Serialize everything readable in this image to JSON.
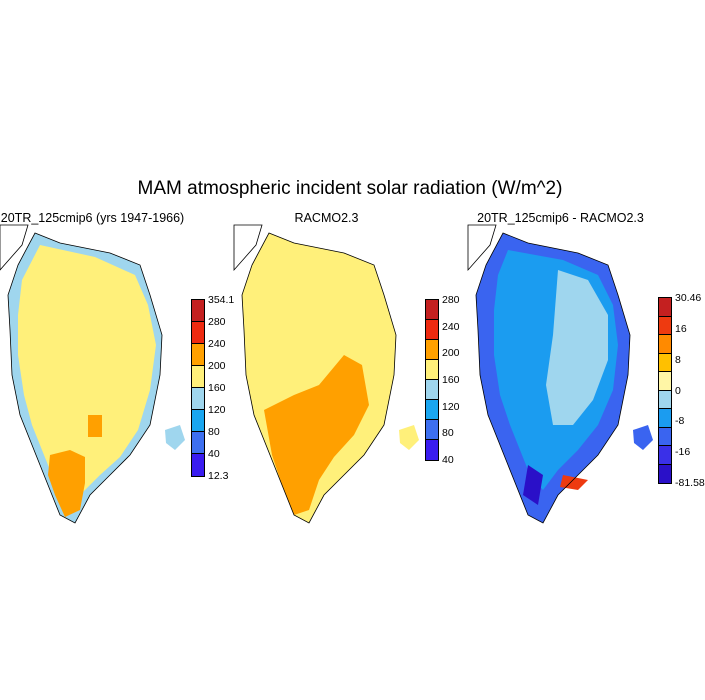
{
  "title": "MAM atmospheric incident solar radiation (W/m^2)",
  "panels": [
    {
      "id": "model",
      "title": "20TR_125cmip6 (yrs 1947-1966)",
      "colorbar": {
        "colors": [
          "#3a1cf0",
          "#3d6ff0",
          "#1aa6f0",
          "#9fd6ee",
          "#fff07a",
          "#ffa000",
          "#ee2a10",
          "#c42020"
        ],
        "labels": [
          "354.1",
          "280",
          "240",
          "200",
          "160",
          "120",
          "80",
          "40",
          "12.3"
        ]
      }
    },
    {
      "id": "racmo",
      "title": "RACMO2.3",
      "colorbar": {
        "colors": [
          "#3a1cf0",
          "#3d6ff0",
          "#1aa6f0",
          "#9fd6ee",
          "#fff07a",
          "#ffa000",
          "#ee2a10",
          "#c42020"
        ],
        "labels": [
          "280",
          "240",
          "200",
          "160",
          "120",
          "80",
          "40"
        ]
      }
    },
    {
      "id": "diff",
      "title": "20TR_125cmip6 - RACMO2.3",
      "colorbar": {
        "colors": [
          "#2a10c8",
          "#3a30e8",
          "#3a64f0",
          "#1b9cf0",
          "#9fd6ee",
          "#fff6a6",
          "#ffc000",
          "#ff8a00",
          "#ee3a10",
          "#c42020"
        ],
        "labels": [
          "30.46",
          "16",
          "8",
          "0",
          "-8",
          "-16",
          "-81.58"
        ]
      }
    }
  ]
}
